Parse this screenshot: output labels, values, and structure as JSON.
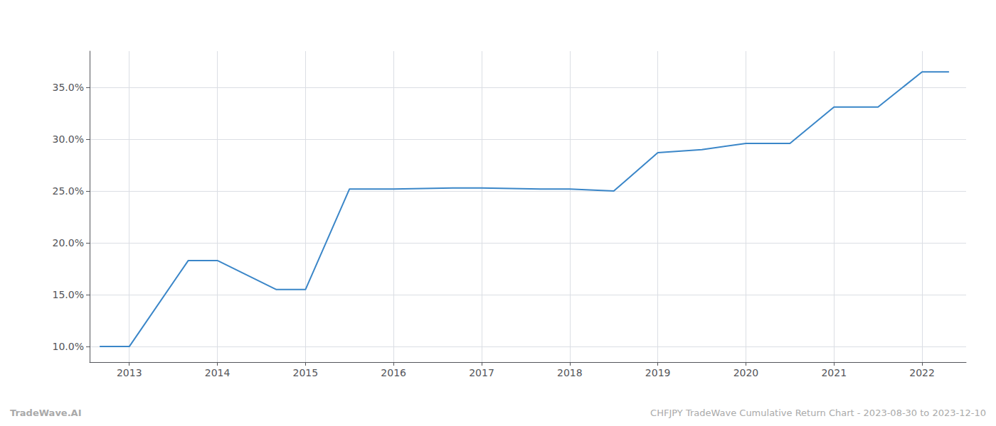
{
  "chart_data": {
    "type": "line",
    "x": [
      2012.67,
      2013.0,
      2013.67,
      2014.0,
      2014.67,
      2015.0,
      2015.5,
      2016.0,
      2016.67,
      2017.0,
      2017.67,
      2018.0,
      2018.5,
      2019.0,
      2019.5,
      2020.0,
      2020.5,
      2021.0,
      2021.5,
      2022.0,
      2022.3
    ],
    "values": [
      10.0,
      10.0,
      18.3,
      18.3,
      15.5,
      15.5,
      25.2,
      25.2,
      25.3,
      25.3,
      25.2,
      25.2,
      25.0,
      28.7,
      29.0,
      29.6,
      29.6,
      33.1,
      33.1,
      36.5,
      36.5
    ],
    "color": "#3a86c8",
    "xlim": [
      2012.55,
      2022.5
    ],
    "xticks": [
      2013,
      2014,
      2015,
      2016,
      2017,
      2018,
      2019,
      2020,
      2021,
      2022
    ],
    "ylim": [
      8.5,
      38.5
    ],
    "yticks": [
      {
        "value": 10.0,
        "label": "10.0%"
      },
      {
        "value": 15.0,
        "label": "15.0%"
      },
      {
        "value": 20.0,
        "label": "20.0%"
      },
      {
        "value": 25.0,
        "label": "25.0%"
      },
      {
        "value": 30.0,
        "label": "30.0%"
      },
      {
        "value": 35.0,
        "label": "35.0%"
      }
    ],
    "grid": true,
    "annotations": [
      "TradeWave.AI",
      "CHFJPY TradeWave Cumulative Return Chart - 2023-08-30 to 2023-12-10"
    ]
  }
}
